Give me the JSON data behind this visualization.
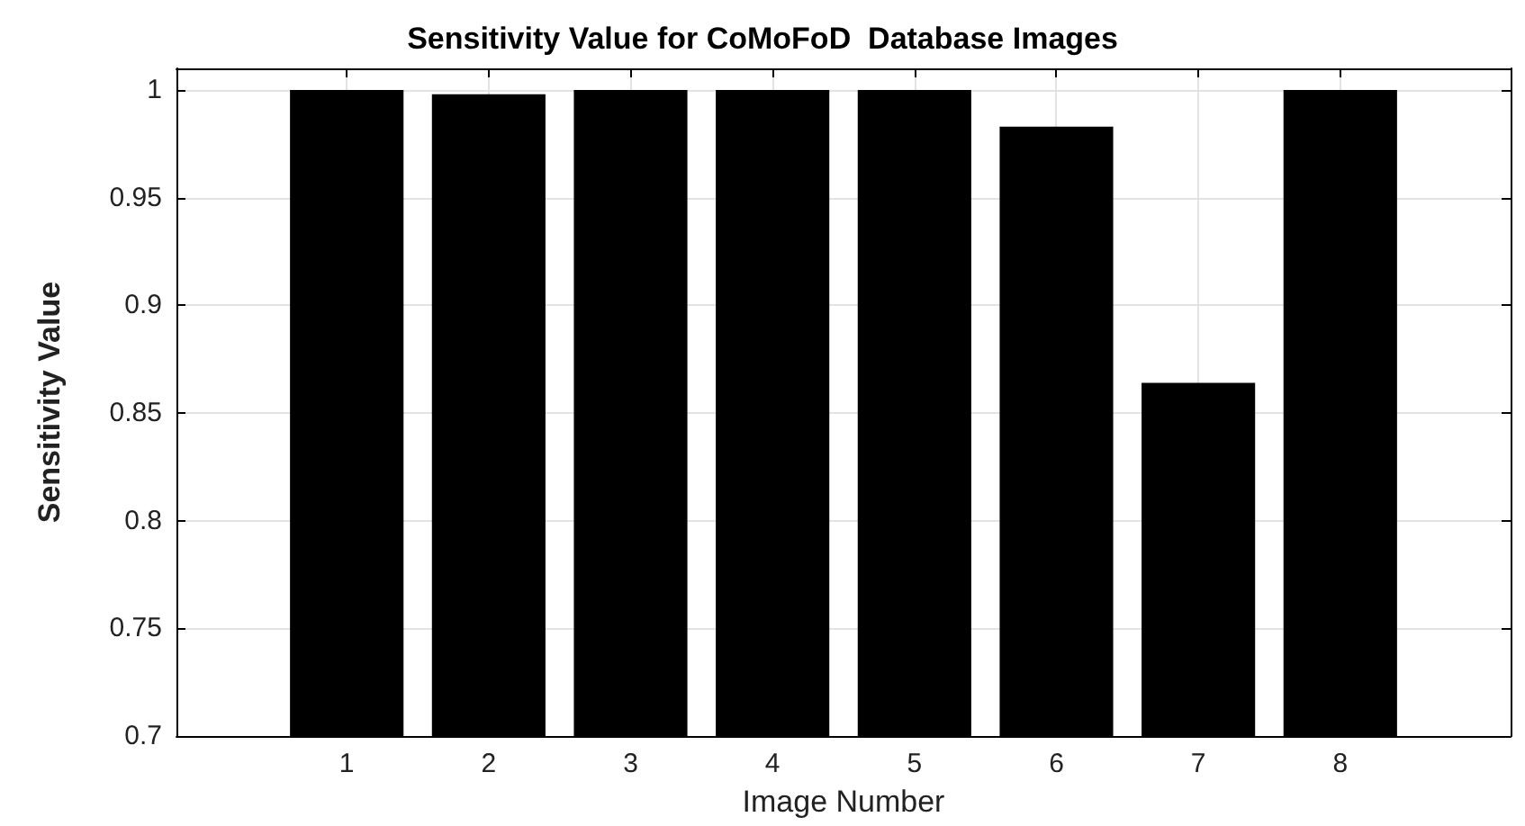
{
  "chart_data": {
    "type": "bar",
    "title": "Sensitivity Value for CoMoFoD  Database Images",
    "xlabel": "Image Number",
    "ylabel": "Sensitivity Value",
    "x": [
      1,
      2,
      3,
      4,
      5,
      6,
      7,
      8
    ],
    "values": [
      1,
      0.998,
      1,
      1,
      1,
      0.983,
      0.864,
      1
    ],
    "color": "#000000",
    "xlim": [
      -0.2,
      9.2
    ],
    "xticks": [
      1,
      2,
      3,
      4,
      5,
      6,
      7,
      8
    ],
    "ylim": [
      0.7,
      1.01
    ],
    "yticks": [
      0.7,
      0.75,
      0.8,
      0.85,
      0.9,
      0.95,
      1
    ],
    "grid": true
  }
}
